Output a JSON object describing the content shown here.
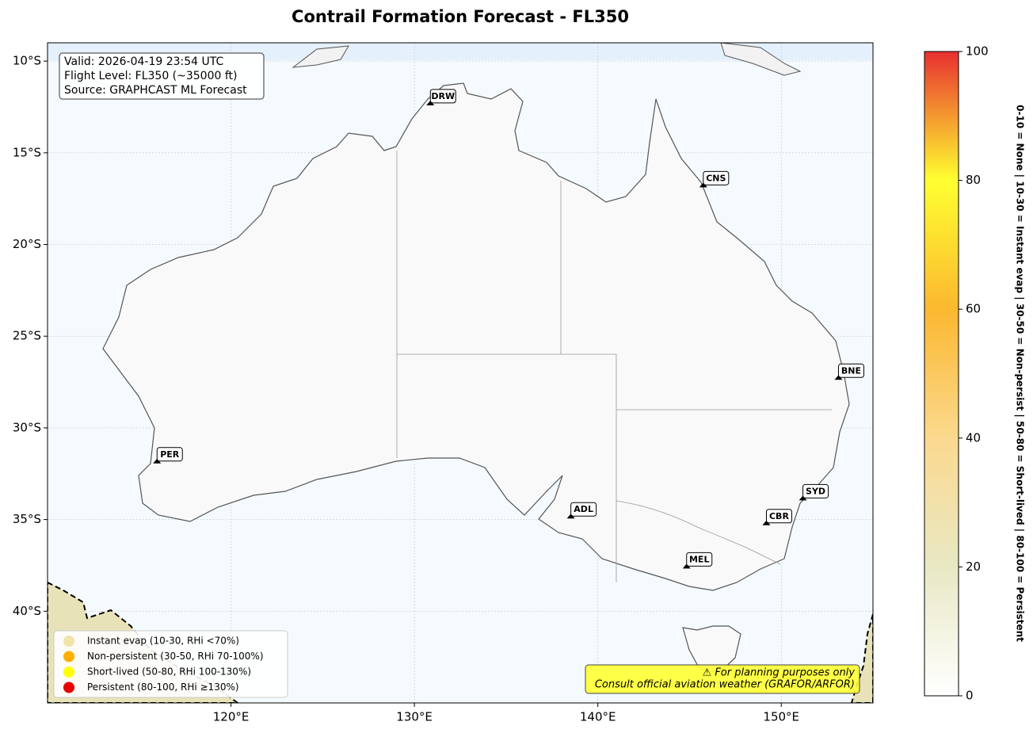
{
  "chart_data": {
    "type": "map",
    "title": "Contrail Formation Forecast - FL350",
    "info_lines": [
      "Valid: 2026-04-19 23:54 UTC",
      "Flight Level: FL350 (~35000 ft)",
      "Source: GRAPHCAST ML Forecast"
    ],
    "xlim": [
      110,
      155
    ],
    "ylim": [
      -45,
      -9
    ],
    "xticks": [
      {
        "value": 120,
        "label": "120°E"
      },
      {
        "value": 130,
        "label": "130°E"
      },
      {
        "value": 140,
        "label": "140°E"
      },
      {
        "value": 150,
        "label": "150°E"
      }
    ],
    "yticks": [
      {
        "value": -10,
        "label": "10°S"
      },
      {
        "value": -15,
        "label": "15°S"
      },
      {
        "value": -20,
        "label": "20°S"
      },
      {
        "value": -25,
        "label": "25°S"
      },
      {
        "value": -30,
        "label": "30°S"
      },
      {
        "value": -35,
        "label": "35°S"
      },
      {
        "value": -40,
        "label": "40°S"
      }
    ],
    "grid": true,
    "airports": [
      {
        "code": "DRW",
        "lon": 130.87,
        "lat": -12.41
      },
      {
        "code": "CNS",
        "lon": 145.75,
        "lat": -16.88
      },
      {
        "code": "BNE",
        "lon": 153.12,
        "lat": -27.38
      },
      {
        "code": "PER",
        "lon": 115.97,
        "lat": -31.94
      },
      {
        "code": "ADL",
        "lon": 138.53,
        "lat": -34.94
      },
      {
        "code": "SYD",
        "lon": 151.18,
        "lat": -33.95
      },
      {
        "code": "CBR",
        "lon": 149.19,
        "lat": -35.31
      },
      {
        "code": "MEL",
        "lon": 144.84,
        "lat": -37.67
      }
    ],
    "legend": [
      {
        "name": "Instant evap (10-30, RHi <70%)",
        "color": "#f0e4a8"
      },
      {
        "name": "Non-persistent (30-50, RHi 70-100%)",
        "color": "#ffb000"
      },
      {
        "name": "Short-lived (50-80, RHi 100-130%)",
        "color": "#ffff00"
      },
      {
        "name": "Persistent (80-100, RHi ≥130%)",
        "color": "#e80000"
      }
    ],
    "legend_position": "lower left",
    "warning_lines": [
      "⚠ For planning purposes only",
      "Consult official aviation weather (GRAFOR/ARFOR)"
    ],
    "colorbar": {
      "lim": [
        0,
        100
      ],
      "ticks": [
        0,
        20,
        40,
        60,
        80,
        100
      ],
      "colors": [
        "#ffffff",
        "#e8e8c4",
        "#fbd98e",
        "#fbb830",
        "#ffff30",
        "#e83030"
      ],
      "label": "0-10 = None  |  10-30 = Instant evap  |  30-50 = Non-persist  |  50-80 = Short-lived  |  80-100 = Persistent"
    }
  }
}
